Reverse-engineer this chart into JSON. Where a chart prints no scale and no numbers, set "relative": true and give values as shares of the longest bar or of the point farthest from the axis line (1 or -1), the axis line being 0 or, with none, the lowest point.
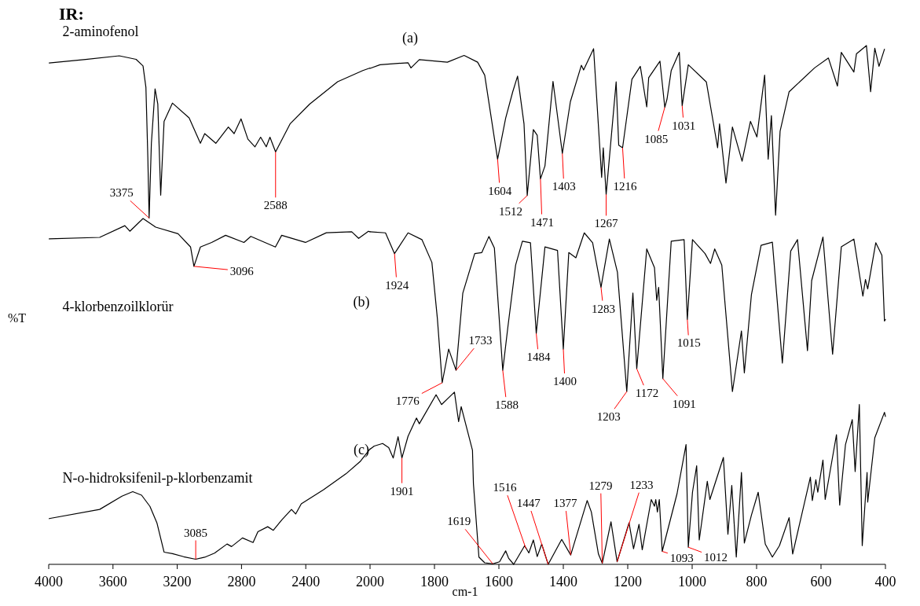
{
  "chart_data": [
    {
      "type": "line",
      "title": "IR:",
      "ylabel": "%T",
      "relative": true,
      "grid": false,
      "xlim": [
        4000,
        2000
      ],
      "xticks": [
        4000,
        3600,
        3200,
        2800,
        2400
      ],
      "series": [
        {
          "name": "2-aminofenol",
          "color": "#000000",
          "x": [
            3997,
            3770,
            3561,
            3456,
            3413,
            3395,
            3383,
            3375,
            3361,
            3338,
            3321,
            3303,
            3282,
            3230,
            3126,
            3056,
            3029,
            2960,
            2882,
            2846,
            2803,
            2760,
            2716,
            2681,
            2646,
            2623,
            2588,
            2498,
            2376,
            2202,
            2045,
            2000
          ],
          "values": [
            0.986,
            0.993,
            1,
            0.993,
            0.98,
            0.938,
            0.8,
            0.681,
            0.828,
            0.935,
            0.905,
            0.726,
            0.871,
            0.907,
            0.878,
            0.828,
            0.847,
            0.828,
            0.86,
            0.847,
            0.876,
            0.836,
            0.821,
            0.84,
            0.821,
            0.84,
            0.811,
            0.866,
            0.905,
            0.949,
            0.971,
            0.976
          ]
        },
        {
          "name": "4-klorbenzoilklorür",
          "color": "#000000",
          "x": [
            3997,
            3683,
            3526,
            3495,
            3413,
            3334,
            3195,
            3117,
            3096,
            3056,
            2986,
            2899,
            2785,
            2742,
            2589,
            2550,
            2402,
            2272,
            2114,
            2071,
            2010,
            2000
          ],
          "values": [
            0.64,
            0.643,
            0.666,
            0.655,
            0.68,
            0.663,
            0.65,
            0.624,
            0.586,
            0.624,
            0.633,
            0.647,
            0.633,
            0.645,
            0.624,
            0.647,
            0.633,
            0.652,
            0.654,
            0.641,
            0.655,
            0.654
          ]
        },
        {
          "name": "N-o-hidroksifenil-p-klorbenzamit",
          "color": "#000000",
          "x": [
            3997,
            3683,
            3544,
            3477,
            3422,
            3370,
            3326,
            3282,
            3230,
            3160,
            3085,
            3029,
            2968,
            2890,
            2862,
            2794,
            2728,
            2698,
            2637,
            2602,
            2550,
            2489,
            2463,
            2428,
            2289,
            2150,
            2062,
            2000
          ],
          "values": [
            0.09,
            0.108,
            0.134,
            0.143,
            0.136,
            0.114,
            0.081,
            0.024,
            0.021,
            0.015,
            0.01,
            0.014,
            0.022,
            0.04,
            0.035,
            0.052,
            0.043,
            0.064,
            0.074,
            0.067,
            0.087,
            0.108,
            0.099,
            0.119,
            0.147,
            0.178,
            0.202,
            0.227
          ]
        }
      ],
      "annotations": [
        {
          "text": "3375",
          "x": 3375,
          "y": 0.681
        },
        {
          "text": "2588",
          "x": 2588,
          "y": 0.811
        },
        {
          "text": "3096",
          "x": 3096,
          "y": 0.586
        },
        {
          "text": "3085",
          "x": 3085,
          "y": 0.01
        },
        "(b)",
        "(c)"
      ]
    },
    {
      "type": "line",
      "xlabel": "cm-1",
      "relative": true,
      "grid": false,
      "xlim": [
        2000,
        400
      ],
      "xticks": [
        2000,
        1800,
        1600,
        1400,
        1200,
        1000,
        800,
        600,
        400
      ],
      "series": [
        {
          "color": "#000000",
          "x": [
            2000,
            1969,
            1882,
            1873,
            1847,
            1760,
            1708,
            1666,
            1644,
            1604,
            1579,
            1557,
            1542,
            1522,
            1512,
            1493,
            1481,
            1471,
            1457,
            1432,
            1403,
            1378,
            1344,
            1337,
            1306,
            1281,
            1276,
            1267,
            1236,
            1228,
            1216,
            1187,
            1161,
            1141,
            1135,
            1100,
            1085,
            1078,
            1065,
            1040,
            1031,
            1012,
            956,
            921,
            915,
            895,
            875,
            845,
            819,
            799,
            775,
            764,
            754,
            741,
            727,
            699,
            620,
            577,
            549,
            537,
            498,
            490,
            459,
            446,
            433,
            420,
            403
          ],
          "values": [
            0.956,
            0.963,
            0.967,
            0.957,
            0.973,
            0.968,
            0.981,
            0.968,
            0.943,
            0.781,
            0.86,
            0.911,
            0.941,
            0.849,
            0.711,
            0.838,
            0.827,
            0.743,
            0.768,
            0.931,
            0.792,
            0.892,
            0.962,
            0.953,
            0.994,
            0.746,
            0.803,
            0.713,
            0.93,
            0.808,
            0.803,
            0.935,
            0.96,
            0.882,
            0.938,
            0.97,
            0.881,
            0.897,
            0.952,
            0.987,
            0.884,
            0.963,
            0.93,
            0.803,
            0.849,
            0.735,
            0.843,
            0.777,
            0.854,
            0.824,
            0.943,
            0.781,
            0.865,
            0.673,
            0.835,
            0.911,
            0.957,
            0.976,
            0.922,
            0.987,
            0.949,
            0.984,
            1,
            0.911,
            0.995,
            0.96,
            0.993
          ]
        },
        {
          "color": "#000000",
          "x": [
            2000,
            1952,
            1924,
            1882,
            1839,
            1808,
            1791,
            1776,
            1756,
            1733,
            1712,
            1675,
            1653,
            1631,
            1614,
            1588,
            1572,
            1548,
            1527,
            1502,
            1484,
            1457,
            1418,
            1400,
            1383,
            1361,
            1335,
            1309,
            1283,
            1257,
            1232,
            1203,
            1184,
            1172,
            1141,
            1117,
            1110,
            1104,
            1091,
            1065,
            1025,
            1015,
            999,
            960,
            943,
            930,
            908,
            875,
            847,
            838,
            816,
            786,
            751,
            720,
            694,
            673,
            642,
            629,
            594,
            564,
            537,
            498,
            470,
            462,
            455,
            430,
            411,
            403,
            400
          ],
          "values": [
            0.641,
            0.639,
            0.599,
            0.639,
            0.626,
            0.582,
            0.474,
            0.35,
            0.415,
            0.374,
            0.523,
            0.599,
            0.601,
            0.632,
            0.61,
            0.374,
            0.458,
            0.577,
            0.623,
            0.62,
            0.445,
            0.612,
            0.605,
            0.415,
            0.601,
            0.591,
            0.639,
            0.62,
            0.534,
            0.627,
            0.563,
            0.333,
            0.523,
            0.377,
            0.608,
            0.572,
            0.509,
            0.534,
            0.358,
            0.623,
            0.626,
            0.472,
            0.626,
            0.599,
            0.58,
            0.608,
            0.577,
            0.333,
            0.45,
            0.369,
            0.52,
            0.615,
            0.621,
            0.388,
            0.604,
            0.626,
            0.412,
            0.547,
            0.631,
            0.405,
            0.612,
            0.627,
            0.517,
            0.549,
            0.531,
            0.62,
            0.596,
            0.469,
            0.472
          ]
        },
        {
          "color": "#000000",
          "x": [
            2000,
            1987,
            1961,
            1942,
            1928,
            1913,
            1901,
            1882,
            1856,
            1847,
            1795,
            1778,
            1738,
            1725,
            1717,
            1682,
            1679,
            1662,
            1644,
            1619,
            1598,
            1579,
            1570,
            1554,
            1520,
            1507,
            1493,
            1481,
            1467,
            1447,
            1405,
            1377,
            1326,
            1313,
            1291,
            1279,
            1252,
            1233,
            1196,
            1182,
            1165,
            1155,
            1127,
            1117,
            1113,
            1108,
            1102,
            1093,
            1047,
            1019,
            1012,
            999,
            986,
            978,
            953,
            945,
            903,
            889,
            877,
            863,
            847,
            838,
            816,
            795,
            773,
            751,
            729,
            699,
            688,
            633,
            627,
            616,
            610,
            594,
            587,
            552,
            542,
            524,
            503,
            494,
            481,
            472,
            457,
            455,
            433,
            403,
            400
          ],
          "values": [
            0.222,
            0.228,
            0.233,
            0.225,
            0.205,
            0.246,
            0.205,
            0.247,
            0.282,
            0.271,
            0.327,
            0.308,
            0.332,
            0.275,
            0.304,
            0.22,
            0.155,
            0.014,
            0.003,
            0.001,
            0.005,
            0.026,
            0.012,
            0,
            0.036,
            0.022,
            0.047,
            0.015,
            0.039,
            0,
            0.048,
            0.018,
            0.123,
            0.101,
            0.02,
            0.002,
            0.082,
            0.005,
            0.08,
            0.03,
            0.077,
            0.028,
            0.125,
            0.112,
            0.125,
            0.101,
            0.125,
            0.025,
            0.136,
            0.231,
            0.033,
            0.139,
            0.19,
            0.047,
            0.16,
            0.125,
            0.206,
            0.058,
            0.152,
            0.014,
            0.177,
            0.041,
            0.095,
            0.139,
            0.039,
            0.014,
            0.036,
            0.09,
            0.02,
            0.168,
            0.123,
            0.163,
            0.139,
            0.201,
            0.125,
            0.25,
            0.114,
            0.231,
            0.279,
            0.179,
            0.308,
            0.036,
            0.177,
            0.12,
            0.244,
            0.293,
            0.285
          ]
        }
      ],
      "annotations": [
        {
          "text": "1604",
          "x": 1604,
          "y": 0.781
        },
        {
          "text": "1512",
          "x": 1512,
          "y": 0.711
        },
        {
          "text": "1471",
          "x": 1471,
          "y": 0.743
        },
        {
          "text": "1403",
          "x": 1403,
          "y": 0.792
        },
        {
          "text": "1267",
          "x": 1267,
          "y": 0.713
        },
        {
          "text": "1216",
          "x": 1216,
          "y": 0.803
        },
        {
          "text": "1085",
          "x": 1085,
          "y": 0.881
        },
        {
          "text": "1031",
          "x": 1031,
          "y": 0.884
        },
        {
          "text": "1924",
          "x": 1924,
          "y": 0.599
        },
        {
          "text": "1776",
          "x": 1776,
          "y": 0.35
        },
        {
          "text": "1733",
          "x": 1733,
          "y": 0.374
        },
        {
          "text": "1588",
          "x": 1588,
          "y": 0.374
        },
        {
          "text": "1484",
          "x": 1484,
          "y": 0.445
        },
        {
          "text": "1400",
          "x": 1400,
          "y": 0.415
        },
        {
          "text": "1283",
          "x": 1283,
          "y": 0.534
        },
        {
          "text": "1203",
          "x": 1203,
          "y": 0.333
        },
        {
          "text": "1172",
          "x": 1172,
          "y": 0.377
        },
        {
          "text": "1091",
          "x": 1091,
          "y": 0.358
        },
        {
          "text": "1015",
          "x": 1015,
          "y": 0.472
        },
        {
          "text": "1901",
          "x": 1901,
          "y": 0.205
        },
        {
          "text": "1619",
          "x": 1619,
          "y": 0.001
        },
        {
          "text": "1516",
          "x": 1516,
          "y": 0.03
        },
        {
          "text": "1447",
          "x": 1447,
          "y": 0
        },
        {
          "text": "1377",
          "x": 1377,
          "y": 0.018
        },
        {
          "text": "1279",
          "x": 1279,
          "y": 0.002
        },
        {
          "text": "1233",
          "x": 1233,
          "y": 0.005
        },
        {
          "text": "1093",
          "x": 1093,
          "y": 0.025
        },
        {
          "text": "1012",
          "x": 1012,
          "y": 0.033
        },
        "(a)"
      ]
    }
  ]
}
